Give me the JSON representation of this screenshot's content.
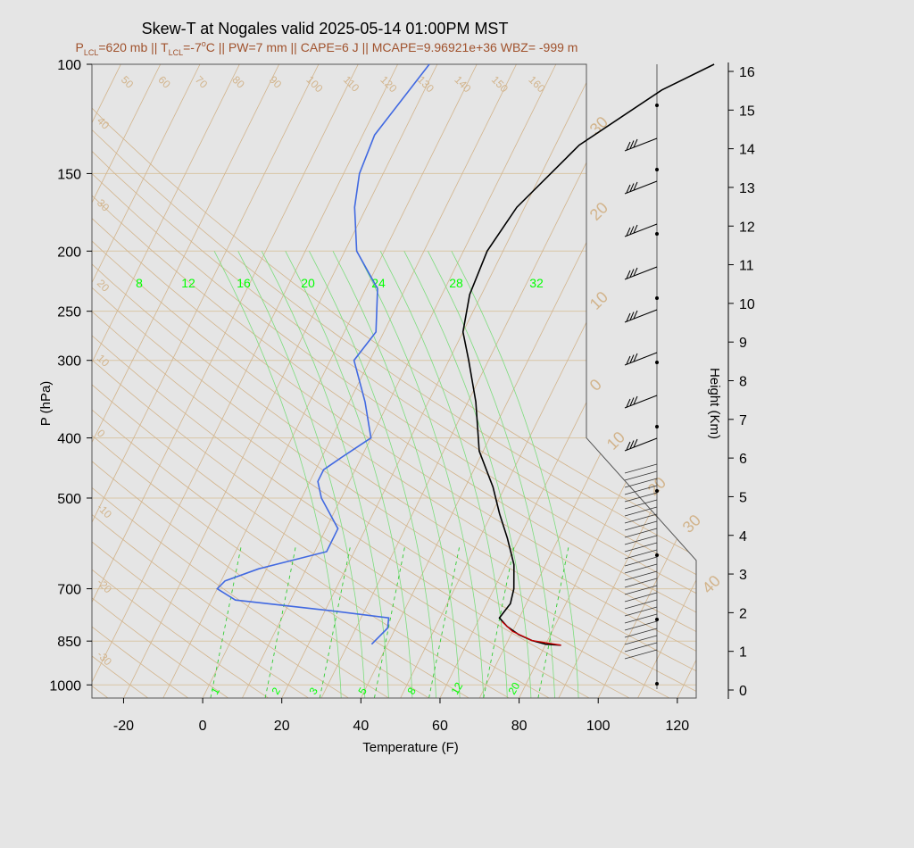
{
  "chart_data": {
    "type": "line",
    "title_main": "Skew-T at Nogales valid 2025-05-14 01:00PM MST",
    "subtitle_parts": {
      "p_lcl": "P",
      "p_lcl_sub": "LCL",
      "p_lcl_val": "=620 mb || T",
      "t_lcl_sub": "LCL",
      "t_lcl_val": "=-7",
      "t_deg": "o",
      "rest": "C || PW=7 mm || CAPE=6 J || MCAPE=9.96921e+36 WBZ= -999 m"
    },
    "xlabel": "Temperature (F)",
    "ylabel": "P (hPa)",
    "y2label": "Height (Km)",
    "xlim": [
      -28,
      125
    ],
    "ylim": [
      1050,
      100
    ],
    "x_ticks": [
      -20,
      0,
      20,
      40,
      60,
      80,
      100,
      120
    ],
    "p_ticks": [
      100,
      150,
      200,
      250,
      300,
      400,
      500,
      700,
      850,
      1000
    ],
    "height_ticks": [
      0,
      1,
      2,
      3,
      4,
      5,
      6,
      7,
      8,
      9,
      10,
      11,
      12,
      13,
      14,
      15,
      16
    ],
    "isotherm_labels_top": [
      "50",
      "60",
      "70",
      "80",
      "90",
      "100",
      "110",
      "120",
      "130",
      "140",
      "150",
      "160"
    ],
    "isotherm_labels_left": [
      "40",
      "30",
      "20",
      "10",
      "0",
      "-10",
      "-20",
      "-30"
    ],
    "mixing_ratio_labels_top": [
      "8",
      "12",
      "16",
      "20",
      "24",
      "28",
      "32"
    ],
    "mixing_ratio_labels_bottom": [
      "1",
      "2",
      "3",
      "5",
      "8",
      "12",
      "20"
    ],
    "hodograph_labels": [
      "30",
      "20",
      "10",
      "0",
      "10",
      "20",
      "30",
      "40"
    ],
    "colors": {
      "temperature": "#000000",
      "dewpoint": "#4169e1",
      "parcel": "#cc0000",
      "isotherm": "#d2b48c",
      "mixing_ratio": "#00dd00",
      "background": "#e5e5e5",
      "subtitle": "#a0522d"
    },
    "series": [
      {
        "name": "Temperature",
        "points": [
          [
            84,
            863
          ],
          [
            80,
            860
          ],
          [
            76,
            848
          ],
          [
            72,
            830
          ],
          [
            68,
            805
          ],
          [
            65,
            780
          ],
          [
            66,
            740
          ],
          [
            65,
            700
          ],
          [
            62,
            640
          ],
          [
            57,
            580
          ],
          [
            52,
            530
          ],
          [
            47,
            480
          ],
          [
            39,
            420
          ],
          [
            32,
            350
          ],
          [
            25,
            300
          ],
          [
            20,
            270
          ],
          [
            17,
            235
          ],
          [
            16,
            200
          ],
          [
            18,
            170
          ],
          [
            26,
            135
          ],
          [
            40,
            110
          ],
          [
            50,
            100
          ]
        ]
      },
      {
        "name": "Dewpoint",
        "points": [
          [
            36,
            860
          ],
          [
            38,
            810
          ],
          [
            37,
            780
          ],
          [
            22,
            760
          ],
          [
            -4,
            730
          ],
          [
            -10,
            700
          ],
          [
            -9,
            680
          ],
          [
            -2,
            650
          ],
          [
            13,
            610
          ],
          [
            13,
            560
          ],
          [
            5,
            500
          ],
          [
            2,
            470
          ],
          [
            2,
            450
          ],
          [
            5,
            430
          ],
          [
            10,
            400
          ],
          [
            4,
            350
          ],
          [
            -4,
            300
          ],
          [
            -2,
            270
          ],
          [
            -7,
            230
          ],
          [
            -17,
            200
          ],
          [
            -23,
            170
          ],
          [
            -26,
            150
          ],
          [
            -27,
            130
          ],
          [
            -22,
            100
          ]
        ]
      },
      {
        "name": "Parcel",
        "points": [
          [
            84,
            863
          ],
          [
            76,
            848
          ],
          [
            70,
            820
          ],
          [
            66,
            790
          ]
        ]
      }
    ]
  }
}
